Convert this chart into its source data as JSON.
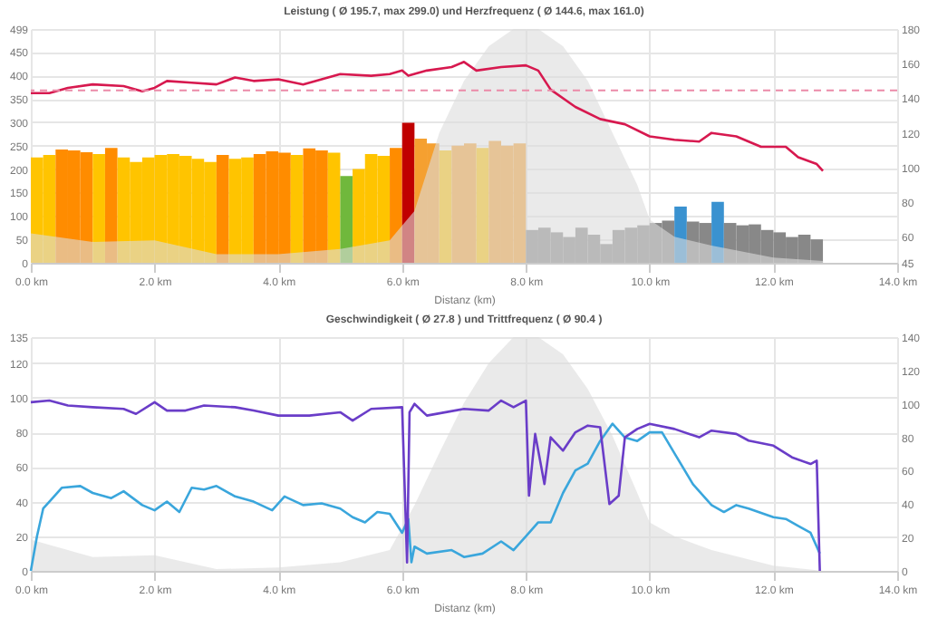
{
  "chart_data": [
    {
      "type": "histogram",
      "title": "Leistung ( Ø 195.7, max 299.0) und Herzfrequenz ( Ø 144.6, max 161.0)",
      "xlabel": "Distanz (km)",
      "xlim": [
        0,
        14
      ],
      "xticks": [
        {
          "value": 0,
          "label": "0.0 km"
        },
        {
          "value": 2,
          "label": "2.0 km"
        },
        {
          "value": 4,
          "label": "4.0 km"
        },
        {
          "value": 6,
          "label": "6.0 km"
        },
        {
          "value": 8,
          "label": "8.0 km"
        },
        {
          "value": 10,
          "label": "10.0 km"
        },
        {
          "value": 12,
          "label": "12.0 km"
        },
        {
          "value": 14,
          "label": "14.0 km"
        }
      ],
      "ylim": [
        0,
        499
      ],
      "yticks": [
        0,
        50,
        100,
        150,
        200,
        250,
        300,
        350,
        400,
        450,
        499
      ],
      "y2lim": [
        45,
        180
      ],
      "y2ticks": [
        45,
        60,
        80,
        100,
        120,
        140,
        160,
        180
      ],
      "grid": true,
      "bins": [
        0,
        0.2,
        0.4,
        0.6,
        0.8,
        1,
        1.2,
        1.4,
        1.6,
        1.8,
        2,
        2.2,
        2.4,
        2.6,
        2.8,
        3,
        3.2,
        3.4,
        3.6,
        3.8,
        4,
        4.2,
        4.4,
        4.6,
        4.8,
        5,
        5.2,
        5.4,
        5.6,
        5.8,
        6,
        6.2,
        6.4,
        6.6,
        6.8,
        7,
        7.2,
        7.4,
        7.6,
        7.8,
        8,
        8.2,
        8.4,
        8.6,
        8.8,
        9,
        9.2,
        9.4,
        9.6,
        9.8,
        10,
        10.2,
        10.4,
        10.6,
        10.8,
        11,
        11.2,
        11.4,
        11.6,
        11.8,
        12,
        12.2,
        12.4,
        12.6,
        12.8
      ],
      "values": [
        225,
        230,
        242,
        240,
        236,
        232,
        245,
        225,
        215,
        225,
        230,
        232,
        228,
        222,
        215,
        230,
        222,
        225,
        232,
        238,
        235,
        230,
        244,
        240,
        235,
        185,
        200,
        232,
        228,
        245,
        299,
        265,
        255,
        240,
        250,
        255,
        245,
        260,
        250,
        255,
        70,
        75,
        65,
        55,
        75,
        60,
        40,
        70,
        75,
        80,
        85,
        90,
        120,
        88,
        85,
        130,
        85,
        80,
        82,
        70,
        65,
        55,
        60,
        50
      ],
      "colors": [
        "#ffc400",
        "#ffc400",
        "#ff8c00",
        "#ff8c00",
        "#ff8c00",
        "#ffc400",
        "#ff8c00",
        "#ffc400",
        "#ffc400",
        "#ffc400",
        "#ffc400",
        "#ffc400",
        "#ffc400",
        "#ffc400",
        "#ffc400",
        "#ff8c00",
        "#ffc400",
        "#ffc400",
        "#ff8c00",
        "#ff8c00",
        "#ff8c00",
        "#ffc400",
        "#ff8c00",
        "#ff8c00",
        "#ffc400",
        "#70b83c",
        "#ffc400",
        "#ffc400",
        "#ffc400",
        "#ff8c00",
        "#c00000",
        "#f5a030",
        "#f5a030",
        "#ffc400",
        "#f5a030",
        "#f5a030",
        "#ffc400",
        "#f5a030",
        "#f5a030",
        "#f5a030",
        "#888888",
        "#888888",
        "#888888",
        "#888888",
        "#888888",
        "#888888",
        "#888888",
        "#888888",
        "#888888",
        "#888888",
        "#888888",
        "#888888",
        "#3a92d0",
        "#888888",
        "#888888",
        "#3a92d0",
        "#888888",
        "#888888",
        "#888888",
        "#888888",
        "#888888",
        "#888888",
        "#888888",
        "#888888"
      ],
      "series": [
        {
          "type": "area",
          "axis": "y2",
          "color": "#dcdcdc",
          "x": [
            0,
            1,
            2,
            3,
            4,
            5,
            5.8,
            6.2,
            6.6,
            7,
            7.4,
            7.8,
            8.2,
            8.6,
            9,
            9.4,
            9.8,
            10,
            10.4,
            11,
            12,
            12.8
          ],
          "values": [
            62,
            57,
            58,
            50,
            50,
            53,
            58,
            75,
            120,
            150,
            170,
            180,
            180,
            170,
            150,
            120,
            90,
            70,
            60,
            55,
            48,
            46
          ]
        },
        {
          "type": "line",
          "axis": "y2",
          "color": "#d7194f",
          "x": [
            0,
            0.3,
            0.6,
            1,
            1.5,
            1.8,
            2,
            2.2,
            2.6,
            3,
            3.3,
            3.6,
            4,
            4.4,
            4.7,
            5,
            5.5,
            5.8,
            6,
            6.1,
            6.4,
            6.8,
            7,
            7.2,
            7.6,
            8,
            8.2,
            8.4,
            8.8,
            9.2,
            9.6,
            10,
            10.4,
            10.8,
            11,
            11.4,
            11.8,
            12.2,
            12.4,
            12.7,
            12.8
          ],
          "values": [
            143,
            143,
            146,
            148,
            147,
            144,
            146,
            150,
            149,
            148,
            152,
            150,
            151,
            148,
            151,
            154,
            153,
            154,
            156,
            153,
            156,
            158,
            161,
            156,
            158,
            159,
            156,
            145,
            135,
            128,
            125,
            118,
            116,
            115,
            120,
            118,
            112,
            112,
            106,
            102,
            98
          ]
        }
      ],
      "ref_lines": [
        {
          "axis": "y2",
          "value": 144.6,
          "color": "#eb8aa8",
          "line_style": "dashed"
        }
      ]
    },
    {
      "type": "line",
      "title": "Geschwindigkeit ( Ø 27.8 ) und Trittfrequenz ( Ø 90.4 )",
      "xlabel": "Distanz (km)",
      "xlim": [
        0,
        14
      ],
      "xticks": [
        {
          "value": 0,
          "label": "0.0 km"
        },
        {
          "value": 2,
          "label": "2.0 km"
        },
        {
          "value": 4,
          "label": "4.0 km"
        },
        {
          "value": 6,
          "label": "6.0 km"
        },
        {
          "value": 8,
          "label": "8.0 km"
        },
        {
          "value": 10,
          "label": "10.0 km"
        },
        {
          "value": 12,
          "label": "12.0 km"
        },
        {
          "value": 14,
          "label": "14.0 km"
        }
      ],
      "ylim": [
        0,
        135
      ],
      "yticks": [
        0,
        20,
        40,
        60,
        80,
        100,
        120,
        135
      ],
      "y2lim": [
        0,
        140
      ],
      "y2ticks": [
        0,
        20,
        40,
        60,
        80,
        100,
        120,
        140
      ],
      "grid": true,
      "series": [
        {
          "type": "area",
          "color": "#dcdcdc",
          "x": [
            0,
            1,
            2,
            3,
            4,
            5,
            5.8,
            6.2,
            6.6,
            7,
            7.4,
            7.8,
            8.2,
            8.6,
            9,
            9.4,
            9.8,
            10,
            10.4,
            11,
            12,
            12.8
          ],
          "values": [
            18,
            8,
            9,
            1,
            2,
            5,
            12,
            38,
            68,
            97,
            120,
            135,
            135,
            125,
            105,
            78,
            45,
            28,
            20,
            12,
            3,
            0
          ]
        },
        {
          "color": "#3aa6dc",
          "x": [
            0,
            0.1,
            0.2,
            0.3,
            0.5,
            0.8,
            1,
            1.3,
            1.5,
            1.8,
            2,
            2.2,
            2.4,
            2.6,
            2.8,
            3,
            3.3,
            3.6,
            3.9,
            4.1,
            4.4,
            4.7,
            5,
            5.2,
            5.4,
            5.6,
            5.8,
            6,
            6.1,
            6.15,
            6.2,
            6.4,
            6.8,
            7,
            7.3,
            7.6,
            7.8,
            8,
            8.2,
            8.4,
            8.6,
            8.8,
            9,
            9.2,
            9.4,
            9.6,
            9.8,
            10,
            10.2,
            10.4,
            10.7,
            11,
            11.2,
            11.4,
            11.6,
            12,
            12.2,
            12.4,
            12.6,
            12.75
          ],
          "values": [
            0,
            20,
            36,
            40,
            48,
            49,
            45,
            42,
            46,
            38,
            35,
            40,
            34,
            48,
            47,
            49,
            43,
            40,
            35,
            43,
            38,
            39,
            36,
            31,
            28,
            34,
            33,
            22,
            30,
            5,
            14,
            10,
            12,
            8,
            10,
            17,
            12,
            20,
            28,
            28,
            45,
            58,
            62,
            75,
            85,
            77,
            75,
            80,
            80,
            68,
            50,
            38,
            34,
            38,
            36,
            31,
            30,
            26,
            22,
            10
          ]
        },
        {
          "axis": "y2",
          "color": "#6a3dc8",
          "x": [
            0,
            0.3,
            0.6,
            1,
            1.5,
            1.7,
            2,
            2.2,
            2.5,
            2.8,
            3.3,
            3.6,
            4,
            4.5,
            5,
            5.2,
            5.5,
            6,
            6.05,
            6.08,
            6.12,
            6.2,
            6.4,
            7,
            7.4,
            7.6,
            7.8,
            8,
            8.05,
            8.15,
            8.3,
            8.4,
            8.6,
            8.8,
            9,
            9.2,
            9.35,
            9.5,
            9.6,
            9.8,
            10,
            10.4,
            10.8,
            11,
            11.4,
            11.6,
            12,
            12.3,
            12.6,
            12.7,
            12.75
          ],
          "values": [
            101,
            102,
            99,
            98,
            97,
            94,
            101,
            96,
            96,
            99,
            98,
            96,
            93,
            93,
            95,
            90,
            97,
            98,
            40,
            5,
            95,
            100,
            93,
            97,
            96,
            102,
            98,
            102,
            45,
            82,
            52,
            80,
            72,
            83,
            87,
            86,
            40,
            45,
            80,
            85,
            88,
            85,
            80,
            84,
            82,
            78,
            75,
            68,
            64,
            66,
            0
          ]
        }
      ]
    }
  ]
}
